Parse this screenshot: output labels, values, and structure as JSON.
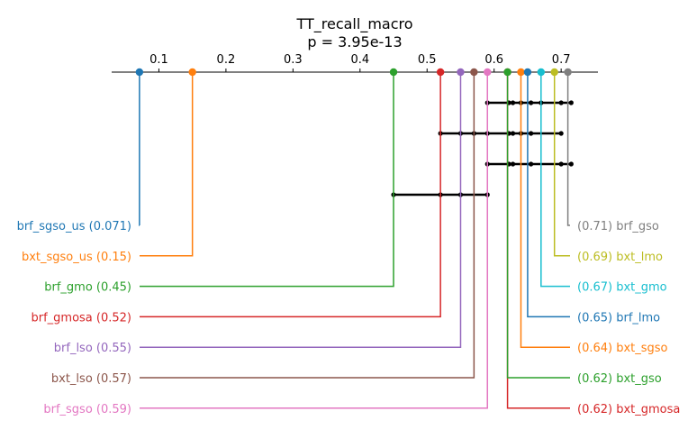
{
  "chart_data": {
    "type": "critical-difference",
    "title": "TT_recall_macro",
    "subtitle": "p = 3.95e-13",
    "axis": {
      "ticks": [
        0.1,
        0.2,
        0.3,
        0.4,
        0.5,
        0.6,
        0.7
      ],
      "tick_labels": [
        "0.1",
        "0.2",
        "0.3",
        "0.4",
        "0.5",
        "0.6",
        "0.7"
      ],
      "xlim": [
        0.0,
        0.72
      ]
    },
    "methods": [
      {
        "name": "brf_sgso_us",
        "value": 0.071,
        "label": "brf_sgso_us (0.071)",
        "color": "#1f77b4",
        "side": "left",
        "row": 0
      },
      {
        "name": "bxt_sgso_us",
        "value": 0.15,
        "label": "bxt_sgso_us (0.15)",
        "color": "#ff7f0e",
        "side": "left",
        "row": 1
      },
      {
        "name": "brf_gmo",
        "value": 0.45,
        "label": "brf_gmo (0.45)",
        "color": "#2ca02c",
        "side": "left",
        "row": 2
      },
      {
        "name": "brf_gmosa",
        "value": 0.52,
        "label": "brf_gmosa (0.52)",
        "color": "#d62728",
        "side": "left",
        "row": 3
      },
      {
        "name": "brf_lso",
        "value": 0.55,
        "label": "brf_lso (0.55)",
        "color": "#9467bd",
        "side": "left",
        "row": 4
      },
      {
        "name": "bxt_lso",
        "value": 0.57,
        "label": "bxt_lso (0.57)",
        "color": "#8c564b",
        "side": "left",
        "row": 5
      },
      {
        "name": "brf_sgso",
        "value": 0.59,
        "label": "brf_sgso (0.59)",
        "color": "#e377c2",
        "side": "left",
        "row": 6
      },
      {
        "name": "bxt_gmosa",
        "value": 0.62,
        "label": "(0.62) bxt_gmosa",
        "color": "#d62728",
        "side": "right",
        "row": 6
      },
      {
        "name": "bxt_gso",
        "value": 0.62,
        "label": "(0.62) bxt_gso",
        "color": "#2ca02c",
        "side": "right",
        "row": 5
      },
      {
        "name": "bxt_sgso",
        "value": 0.64,
        "label": "(0.64) bxt_sgso",
        "color": "#ff7f0e",
        "side": "right",
        "row": 4
      },
      {
        "name": "brf_lmo",
        "value": 0.65,
        "label": "(0.65) brf_lmo",
        "color": "#1f77b4",
        "side": "right",
        "row": 3
      },
      {
        "name": "bxt_gmo",
        "value": 0.67,
        "label": "(0.67) bxt_gmo",
        "color": "#17becf",
        "side": "right",
        "row": 2
      },
      {
        "name": "bxt_lmo",
        "value": 0.69,
        "label": "(0.69) bxt_lmo",
        "color": "#bcbd22",
        "side": "right",
        "row": 1
      },
      {
        "name": "brf_gso",
        "value": 0.71,
        "label": "(0.71) brf_gso",
        "color": "#7f7f7f",
        "side": "right",
        "row": 0
      }
    ],
    "cliques": [
      {
        "points": [
          0.59,
          0.622,
          0.628,
          0.64,
          0.655,
          0.67,
          0.7,
          0.715
        ]
      },
      {
        "points": [
          0.52,
          0.55,
          0.57,
          0.59,
          0.622,
          0.628,
          0.64,
          0.655,
          0.7
        ]
      },
      {
        "points": [
          0.59,
          0.622,
          0.628,
          0.655,
          0.7,
          0.715
        ]
      },
      {
        "points": [
          0.45,
          0.52,
          0.55,
          0.59
        ]
      }
    ],
    "clique_color": "#000000",
    "grid": false,
    "legend": "none"
  }
}
